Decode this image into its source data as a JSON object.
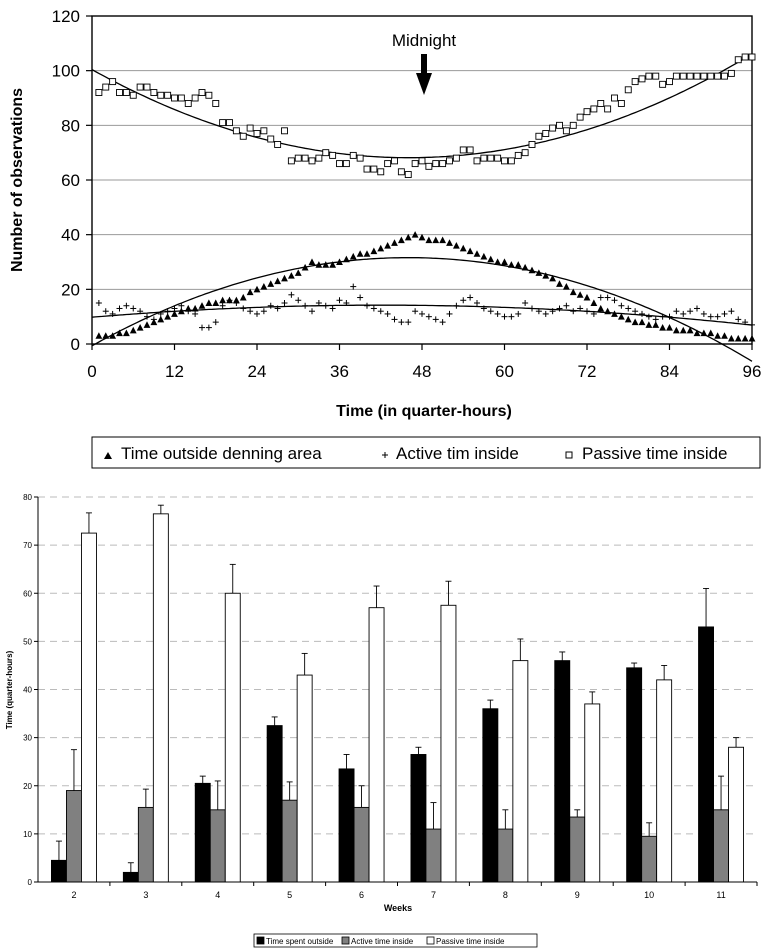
{
  "chart_data": [
    {
      "type": "scatter",
      "annotation": "Midnight",
      "xlabel": "Time (in quarter-hours)",
      "ylabel": "Number of observations",
      "xlim": [
        0,
        96
      ],
      "ylim": [
        0,
        120
      ],
      "x_ticks": [
        "0",
        "12",
        "24",
        "36",
        "48",
        "60",
        "72",
        "84",
        "96"
      ],
      "y_ticks": [
        "0",
        "20",
        "40",
        "60",
        "80",
        "100",
        "120"
      ],
      "grid": "horizontal",
      "legend_position": "bottom",
      "series": [
        {
          "name": "Time outside denning area",
          "marker": "triangle",
          "x": [
            1,
            2,
            3,
            4,
            5,
            6,
            7,
            8,
            9,
            10,
            11,
            12,
            13,
            14,
            15,
            16,
            17,
            18,
            19,
            20,
            21,
            22,
            23,
            24,
            25,
            26,
            27,
            28,
            29,
            30,
            31,
            32,
            33,
            34,
            35,
            36,
            37,
            38,
            39,
            40,
            41,
            42,
            43,
            44,
            45,
            46,
            47,
            48,
            49,
            50,
            51,
            52,
            53,
            54,
            55,
            56,
            57,
            58,
            59,
            60,
            61,
            62,
            63,
            64,
            65,
            66,
            67,
            68,
            69,
            70,
            71,
            72,
            73,
            74,
            75,
            76,
            77,
            78,
            79,
            80,
            81,
            82,
            83,
            84,
            85,
            86,
            87,
            88,
            89,
            90,
            91,
            92,
            93,
            94,
            95,
            96
          ],
          "values": [
            3,
            3,
            3,
            4,
            4,
            5,
            6,
            7,
            8,
            9,
            10,
            11,
            12,
            13,
            13,
            14,
            15,
            15,
            16,
            16,
            16,
            17,
            19,
            20,
            21,
            22,
            23,
            24,
            25,
            26,
            28,
            30,
            29,
            29,
            29,
            30,
            31,
            32,
            33,
            33,
            34,
            35,
            36,
            37,
            38,
            39,
            40,
            39,
            38,
            38,
            38,
            37,
            36,
            35,
            34,
            33,
            32,
            31,
            30,
            30,
            29,
            29,
            28,
            27,
            26,
            25,
            24,
            22,
            21,
            19,
            18,
            17,
            15,
            13,
            12,
            11,
            10,
            9,
            8,
            8,
            7,
            7,
            6,
            6,
            5,
            5,
            5,
            4,
            4,
            4,
            3,
            3,
            2,
            2,
            2,
            2
          ],
          "trend": "polynomial"
        },
        {
          "name": "Active tim inside",
          "marker": "plus",
          "x": [
            1,
            2,
            3,
            4,
            5,
            6,
            7,
            8,
            9,
            10,
            11,
            12,
            13,
            14,
            15,
            16,
            17,
            18,
            19,
            20,
            21,
            22,
            23,
            24,
            25,
            26,
            27,
            28,
            29,
            30,
            31,
            32,
            33,
            34,
            35,
            36,
            37,
            38,
            39,
            40,
            41,
            42,
            43,
            44,
            45,
            46,
            47,
            48,
            49,
            50,
            51,
            52,
            53,
            54,
            55,
            56,
            57,
            58,
            59,
            60,
            61,
            62,
            63,
            64,
            65,
            66,
            67,
            68,
            69,
            70,
            71,
            72,
            73,
            74,
            75,
            76,
            77,
            78,
            79,
            80,
            81,
            82,
            83,
            84,
            85,
            86,
            87,
            88,
            89,
            90,
            91,
            92,
            93,
            94,
            95,
            96
          ],
          "values": [
            15,
            12,
            11,
            13,
            14,
            13,
            12,
            10,
            9,
            11,
            12,
            13,
            14,
            12,
            11,
            6,
            6,
            8,
            14,
            16,
            15,
            13,
            12,
            11,
            12,
            14,
            13,
            15,
            18,
            16,
            14,
            12,
            15,
            14,
            13,
            16,
            15,
            21,
            17,
            14,
            13,
            12,
            11,
            9,
            8,
            8,
            12,
            11,
            10,
            9,
            8,
            11,
            14,
            16,
            17,
            15,
            13,
            12,
            11,
            10,
            10,
            11,
            15,
            13,
            12,
            11,
            12,
            13,
            14,
            12,
            13,
            12,
            11,
            17,
            17,
            16,
            14,
            13,
            12,
            11,
            10,
            9,
            10,
            10,
            12,
            11,
            12,
            13,
            11,
            10,
            10,
            11,
            12,
            9,
            8,
            7
          ],
          "trend": "polynomial"
        },
        {
          "name": "Passive time inside",
          "marker": "open-square",
          "x": [
            1,
            2,
            3,
            4,
            5,
            6,
            7,
            8,
            9,
            10,
            11,
            12,
            13,
            14,
            15,
            16,
            17,
            18,
            19,
            20,
            21,
            22,
            23,
            24,
            25,
            26,
            27,
            28,
            29,
            30,
            31,
            32,
            33,
            34,
            35,
            36,
            37,
            38,
            39,
            40,
            41,
            42,
            43,
            44,
            45,
            46,
            47,
            48,
            49,
            50,
            51,
            52,
            53,
            54,
            55,
            56,
            57,
            58,
            59,
            60,
            61,
            62,
            63,
            64,
            65,
            66,
            67,
            68,
            69,
            70,
            71,
            72,
            73,
            74,
            75,
            76,
            77,
            78,
            79,
            80,
            81,
            82,
            83,
            84,
            85,
            86,
            87,
            88,
            89,
            90,
            91,
            92,
            93,
            94,
            95,
            96
          ],
          "values": [
            92,
            94,
            96,
            92,
            92,
            91,
            94,
            94,
            92,
            91,
            91,
            90,
            90,
            88,
            90,
            92,
            91,
            88,
            81,
            81,
            78,
            76,
            79,
            77,
            78,
            75,
            73,
            78,
            67,
            68,
            68,
            67,
            68,
            70,
            69,
            66,
            66,
            69,
            68,
            64,
            64,
            63,
            66,
            67,
            63,
            62,
            66,
            67,
            65,
            66,
            66,
            67,
            68,
            71,
            71,
            67,
            68,
            68,
            68,
            67,
            67,
            69,
            70,
            73,
            76,
            77,
            79,
            80,
            78,
            80,
            83,
            85,
            86,
            88,
            86,
            90,
            88,
            93,
            96,
            97,
            98,
            98,
            95,
            96,
            98,
            98,
            98,
            98,
            98,
            98,
            98,
            98,
            99,
            104,
            105,
            105
          ]
        }
      ],
      "trendlines": [
        {
          "series": "Time outside denning area",
          "coeffs": [
            -0.65,
            1.4,
            -0.0152
          ]
        },
        {
          "series": "Active tim inside",
          "coeffs": [
            9.8,
            0.21,
            -0.0025
          ]
        },
        {
          "series": "Passive time inside",
          "coeffs": [
            100.4,
            -1.4,
            0.0152
          ]
        }
      ]
    },
    {
      "type": "bar",
      "xlabel": "Weeks",
      "ylabel": "Time (quarter-hours)",
      "ylim": [
        0,
        80
      ],
      "y_ticks": [
        "0",
        "10",
        "20",
        "30",
        "40",
        "50",
        "60",
        "70",
        "80"
      ],
      "grid": "horizontal-dashed",
      "legend_position": "bottom",
      "categories": [
        "2",
        "3",
        "4",
        "5",
        "6",
        "7",
        "8",
        "9",
        "10",
        "11"
      ],
      "series": [
        {
          "name": "Time spent outside",
          "values": [
            4.5,
            2,
            20.5,
            32.5,
            23.5,
            26.5,
            36,
            46,
            44.5,
            53
          ],
          "errors": [
            4,
            2,
            1.5,
            1.8,
            3,
            1.5,
            1.8,
            1.8,
            1,
            8
          ]
        },
        {
          "name": "Active time inside",
          "values": [
            19,
            15.5,
            15,
            17,
            15.5,
            11,
            11,
            13.5,
            9.5,
            15
          ],
          "errors": [
            8.5,
            3.8,
            6,
            3.8,
            4.5,
            5.5,
            4,
            1.5,
            2.8,
            7
          ]
        },
        {
          "name": "Passive time inside",
          "values": [
            72.5,
            76.5,
            60,
            43,
            57,
            57.5,
            46,
            37,
            42,
            28
          ],
          "errors": [
            4.2,
            1.8,
            6,
            4.5,
            4.5,
            5,
            4.5,
            2.5,
            3,
            2
          ]
        }
      ]
    }
  ],
  "colors": {
    "axis": "#000000",
    "grid_top": "#999999",
    "grid_bottom": "#bbbbbb",
    "bar_outside": "#000000",
    "bar_active": "#808080",
    "bar_passive": "#ffffff"
  }
}
